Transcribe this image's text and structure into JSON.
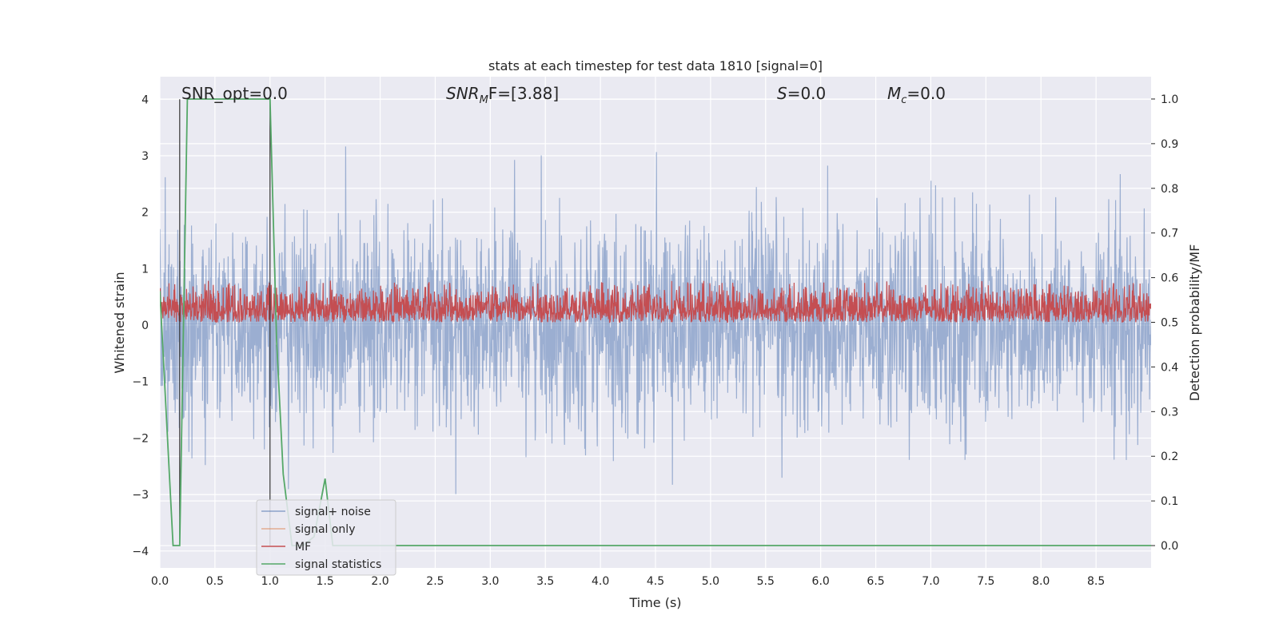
{
  "chart_data": {
    "type": "line",
    "title": "stats at each timestep for test data 1810 [signal=0]",
    "xlabel": "Time (s)",
    "ylabel_left": "Whitened strain",
    "ylabel_right": "Detection probability/MF",
    "xlim": [
      0.0,
      9.0
    ],
    "ylim_left": [
      -4.3,
      4.4
    ],
    "ylim_right": [
      -0.05,
      1.05
    ],
    "x_ticks": [
      "0.0",
      "0.5",
      "1.0",
      "1.5",
      "2.0",
      "2.5",
      "3.0",
      "3.5",
      "4.0",
      "4.5",
      "5.0",
      "5.5",
      "6.0",
      "6.5",
      "7.0",
      "7.5",
      "8.0",
      "8.5"
    ],
    "y_ticks_left": [
      "−4",
      "−3",
      "−2",
      "−1",
      "0",
      "1",
      "2",
      "3",
      "4"
    ],
    "y_ticks_right": [
      "0.0",
      "0.1",
      "0.2",
      "0.3",
      "0.4",
      "0.5",
      "0.6",
      "0.7",
      "0.8",
      "0.9",
      "1.0"
    ],
    "grid": true,
    "legend_position": "lower-left",
    "annotations": {
      "snr_opt": "SNR_opt=0.0",
      "snr_mf_main": "SNR",
      "snr_mf_sub": "M",
      "snr_mf_tail": "F=[3.88]",
      "s_main": "S",
      "s_tail": "=0.0",
      "mc_main": "M",
      "mc_sub": "c",
      "mc_tail": "=0.0"
    },
    "vertical_lines_x": [
      0.18,
      1.0
    ],
    "series": [
      {
        "name": "signal+ noise",
        "color": "#4c72b0",
        "axis": "left",
        "description_values": {
          "mean": 0.0,
          "std_approx": 0.9,
          "max": 4.0,
          "min": -3.8
        }
      },
      {
        "name": "signal only",
        "color": "#dd8452",
        "axis": "left",
        "values": []
      },
      {
        "name": "MF",
        "color": "#c44e52",
        "axis": "right",
        "band": {
          "low": 0.5,
          "high": 0.6
        }
      },
      {
        "name": "signal statistics",
        "color": "#55a868",
        "axis": "right",
        "x": [
          0.0,
          0.12,
          0.18,
          0.25,
          1.0,
          1.06,
          1.12,
          1.2,
          1.3,
          1.4,
          1.5,
          1.57,
          1.65,
          9.0
        ],
        "values": [
          0.57,
          0.0,
          0.0,
          1.0,
          1.0,
          0.46,
          0.16,
          0.0,
          0.0,
          0.02,
          0.15,
          0.0,
          0.0,
          0.0
        ]
      }
    ]
  }
}
